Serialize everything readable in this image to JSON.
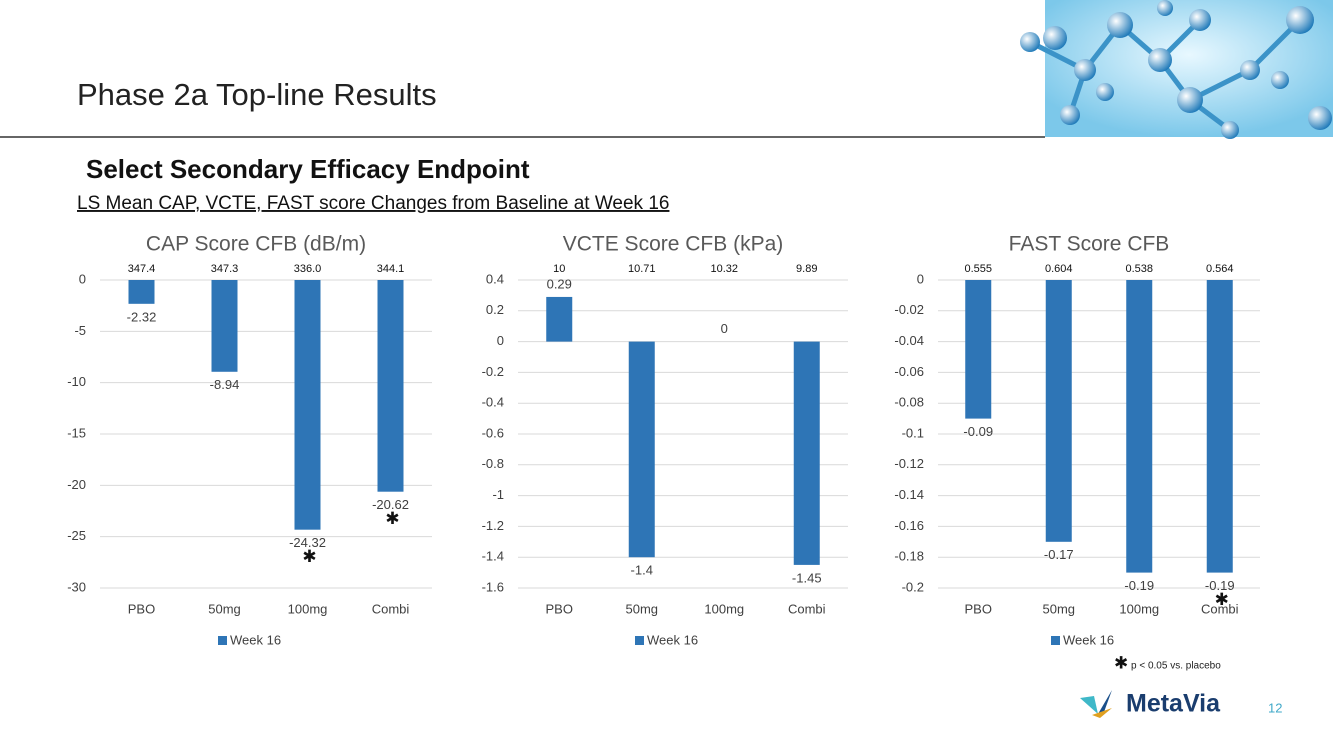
{
  "slide": {
    "title": "Phase 2a Top-line Results",
    "heading": "Select Secondary Efficacy Endpoint",
    "subheading": "LS Mean CAP, VCTE, FAST score Changes from Baseline at Week 16",
    "footnote_symbol": "✱",
    "footnote": "p < 0.05 vs. placebo",
    "logo": "MetaVia",
    "page_number": "12"
  },
  "chart_data": [
    {
      "type": "bar",
      "title": "CAP Score CFB (dB/m)",
      "categories": [
        "PBO",
        "50mg",
        "100mg",
        "Combi"
      ],
      "series": [
        {
          "name": "Week 16",
          "color": "#2e75b6",
          "values": [
            -2.32,
            -8.94,
            -24.32,
            -20.62
          ]
        }
      ],
      "baselines": [
        "347.4",
        "347.3",
        "336.0",
        "344.1"
      ],
      "significant": [
        false,
        false,
        true,
        true
      ],
      "ylim": [
        -30,
        0
      ],
      "yticks": [
        -30,
        -25,
        -20,
        -15,
        -10,
        -5,
        0
      ],
      "grid": true,
      "legend": "bottom"
    },
    {
      "type": "bar",
      "title": "VCTE Score CFB (kPa)",
      "categories": [
        "PBO",
        "50mg",
        "100mg",
        "Combi"
      ],
      "series": [
        {
          "name": "Week 16",
          "color": "#2e75b6",
          "values": [
            0.29,
            -1.4,
            0,
            -1.45
          ]
        }
      ],
      "baselines": [
        "10",
        "10.71",
        "10.32",
        "9.89"
      ],
      "significant": [
        false,
        false,
        false,
        false
      ],
      "ylim": [
        -1.6,
        0.4
      ],
      "yticks": [
        -1.6,
        -1.4,
        -1.2,
        -1,
        -0.8,
        -0.6,
        -0.4,
        -0.2,
        0,
        0.2,
        0.4
      ],
      "grid": true,
      "legend": "bottom"
    },
    {
      "type": "bar",
      "title": "FAST Score CFB",
      "categories": [
        "PBO",
        "50mg",
        "100mg",
        "Combi"
      ],
      "series": [
        {
          "name": "Week 16",
          "color": "#2e75b6",
          "values": [
            -0.09,
            -0.17,
            -0.19,
            -0.19
          ]
        }
      ],
      "baselines": [
        "0.555",
        "0.604",
        "0.538",
        "0.564"
      ],
      "significant": [
        false,
        false,
        false,
        true
      ],
      "ylim": [
        -0.2,
        0
      ],
      "yticks": [
        -0.2,
        -0.18,
        -0.16,
        -0.14,
        -0.12,
        -0.1,
        -0.08,
        -0.06,
        -0.04,
        -0.02,
        0
      ],
      "grid": true,
      "legend": "bottom"
    }
  ]
}
